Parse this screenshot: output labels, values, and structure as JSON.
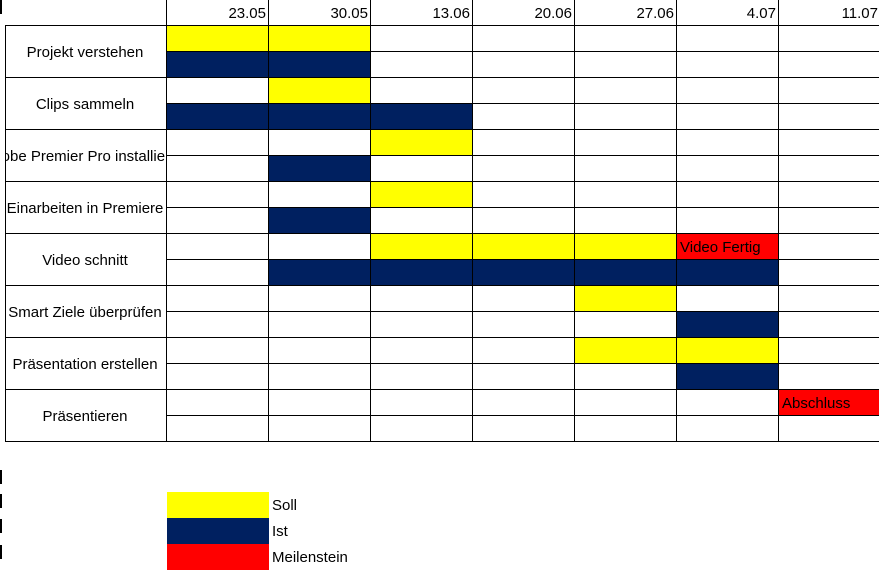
{
  "dates": [
    "23.05",
    "30.05",
    "13.06",
    "20.06",
    "27.06",
    "4.07",
    "11.07"
  ],
  "tasks": [
    {
      "label": "Projekt verstehen",
      "soll": [
        0,
        1
      ],
      "ist": [
        0,
        1
      ]
    },
    {
      "label": "Clips sammeln",
      "soll": [
        1
      ],
      "ist": [
        0,
        1,
        2
      ]
    },
    {
      "label": "Adobe Premier Pro installieren",
      "soll": [
        2
      ],
      "ist": [
        1
      ]
    },
    {
      "label": "Einarbeiten in Premiere",
      "soll": [
        2
      ],
      "ist": [
        1
      ]
    },
    {
      "label": "Video schnitt",
      "soll": [
        2,
        3,
        4
      ],
      "ist": [
        1,
        2,
        3,
        4,
        5
      ]
    },
    {
      "label": "Smart Ziele überprüfen",
      "soll": [
        4
      ],
      "ist": [
        5
      ]
    },
    {
      "label": "Präsentation erstellen",
      "soll": [
        4,
        5
      ],
      "ist": [
        5
      ]
    },
    {
      "label": "Präsentieren",
      "soll": [],
      "ist": []
    }
  ],
  "milestones": [
    {
      "label": "Video Fertig",
      "task": 4,
      "sub": "soll",
      "col": 5
    },
    {
      "label": "Abschluss",
      "task": 7,
      "sub": "soll",
      "col": 6
    }
  ],
  "legend": [
    {
      "label": "Soll",
      "color": "#ffff00"
    },
    {
      "label": "Ist",
      "color": "#002060"
    },
    {
      "label": "Meilenstein",
      "color": "#ff0000"
    }
  ],
  "colors": {
    "soll": "#ffff00",
    "ist": "#002060",
    "meilenstein": "#ff0000",
    "grid": "#000000"
  }
}
